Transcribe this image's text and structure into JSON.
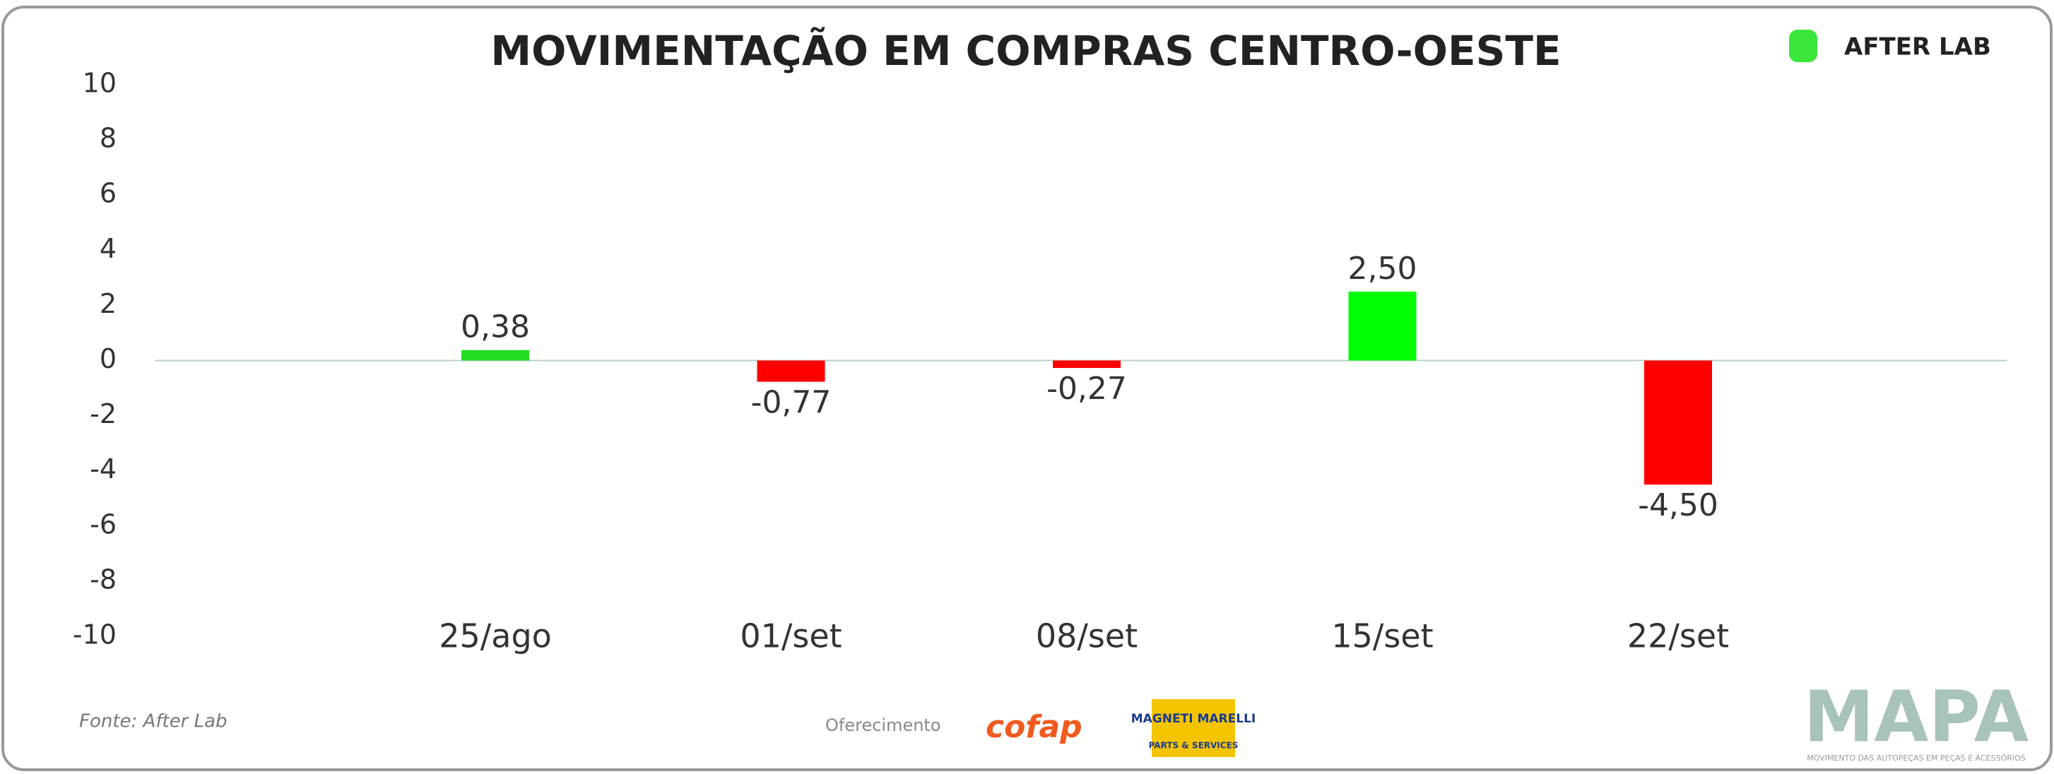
{
  "chart_data": {
    "type": "bar",
    "title": "MOVIMENTAÇÃO EM COMPRAS CENTRO-OESTE",
    "categories": [
      "25/ago",
      "01/set",
      "08/set",
      "15/set",
      "22/set"
    ],
    "values": [
      0.38,
      -0.77,
      -0.27,
      2.5,
      -4.5
    ],
    "value_labels": [
      "0,38",
      "-0,77",
      "-0,27",
      "2,50",
      "-4,50"
    ],
    "colors": [
      "#22dd22",
      "#ff0000",
      "#ff0000",
      "#00ff00",
      "#ff0000"
    ],
    "ylim": [
      -10,
      10
    ],
    "yticks": [
      -10,
      -8,
      -6,
      -4,
      -2,
      0,
      2,
      4,
      6,
      8,
      10
    ],
    "grid": false
  },
  "brand": "AFTER LAB",
  "footer": {
    "source": "Fonte: After Lab",
    "sponsor_label": "Oferecimento",
    "sponsor_1": "cofap",
    "sponsor_2": "MAGNETI MARELLI",
    "sponsor_2_sub": "PARTS & SERVICES",
    "logo": "MAPA",
    "logo_sub": "MOVIMENTO DAS AUTOPEÇAS EM PEÇAS E ACESSÓRIOS"
  }
}
